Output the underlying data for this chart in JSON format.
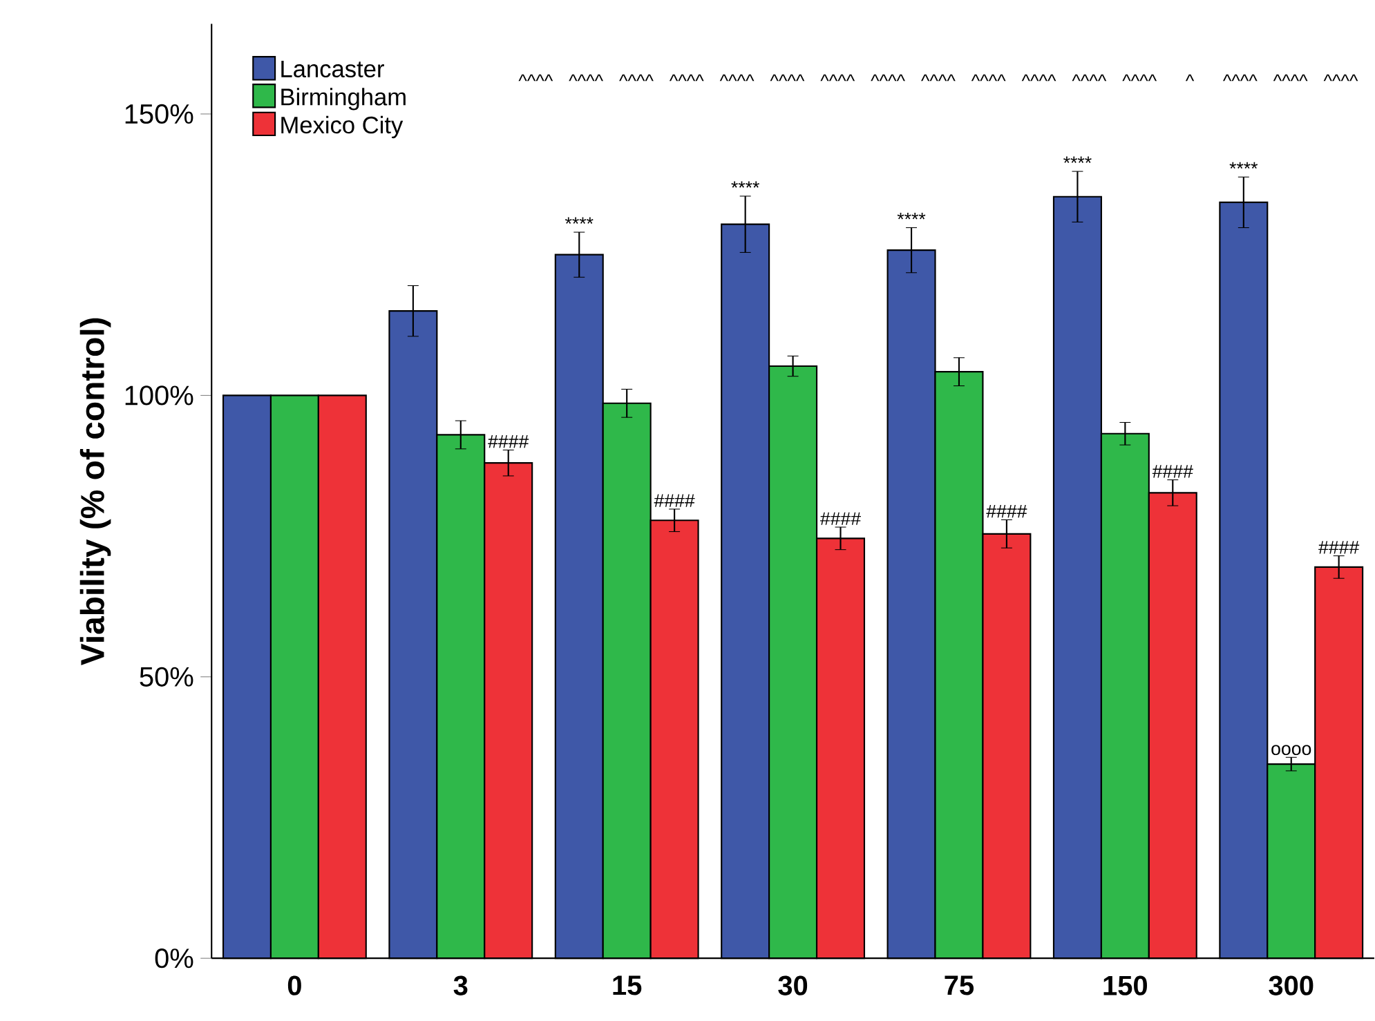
{
  "chart_data": {
    "type": "bar",
    "ylabel": "Viability (% of control)",
    "categories": [
      "0",
      "3",
      "15",
      "30",
      "75",
      "150",
      "300"
    ],
    "series": [
      {
        "name": "Lancaster",
        "color": "#3f58a8",
        "values": [
          100,
          115,
          125,
          130.4,
          125.8,
          135.3,
          134.3
        ],
        "errors": [
          null,
          4.5,
          4,
          5,
          4,
          4.5,
          4.5
        ],
        "value_labels": [
          null,
          null,
          "****",
          "****",
          "****",
          "****",
          "****"
        ]
      },
      {
        "name": "Birmingham",
        "color": "#2fb84a",
        "values": [
          100,
          93,
          98.6,
          105.2,
          104.2,
          93.2,
          34.5
        ],
        "errors": [
          null,
          2.5,
          2.5,
          1.8,
          2.5,
          2,
          1.2
        ],
        "value_labels": [
          null,
          null,
          null,
          null,
          null,
          null,
          "oooo"
        ]
      },
      {
        "name": "Mexico City",
        "color": "#ee3238",
        "values": [
          100,
          88,
          77.8,
          74.6,
          75.4,
          82.7,
          69.5
        ],
        "errors": [
          null,
          2.3,
          2,
          2,
          2.5,
          2.3,
          2
        ],
        "value_labels": [
          null,
          "####",
          "####",
          "####",
          "####",
          "####",
          "####"
        ]
      }
    ],
    "ylim": [
      0,
      166
    ],
    "yticks": [
      {
        "value": 0,
        "label": "0%"
      },
      {
        "value": 50,
        "label": "50%"
      },
      {
        "value": 100,
        "label": "100%"
      },
      {
        "value": 150,
        "label": "150%"
      }
    ],
    "legend": "top left",
    "grid": false,
    "annotations": [
      "^^^^",
      "^^^^",
      "^^^^",
      "^^^^",
      "^^^^",
      "^^^^",
      "^^^^",
      "^^^^",
      "^^^^",
      "^^^^",
      "^^^^",
      "^^^^",
      "^^^^",
      "^",
      "^^^^",
      "^^^^",
      "^^^^"
    ]
  }
}
